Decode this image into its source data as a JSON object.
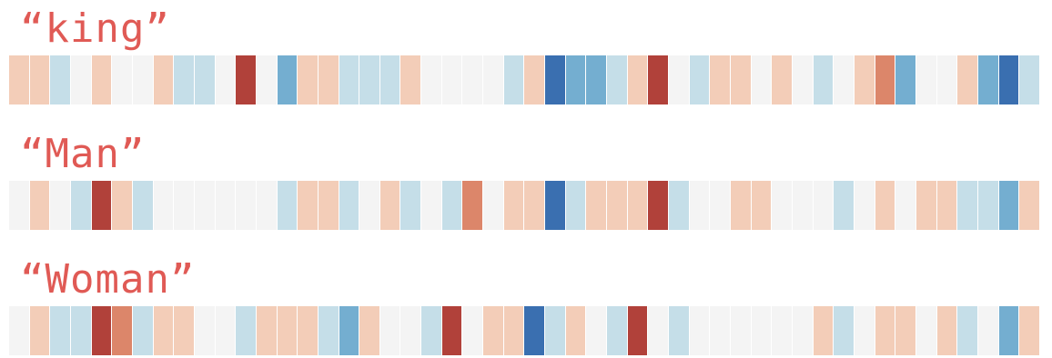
{
  "palette": {
    "-3": "#3a6fb0",
    "-2": "#74aed0",
    "-1": "#c5dee8",
    "0": "#f4f4f4",
    "1": "#f3cdb8",
    "2": "#dc866a",
    "3": "#b1413a"
  },
  "words": [
    {
      "label": "“king”",
      "values": [
        1,
        1,
        -1,
        0,
        1,
        0,
        0,
        1,
        -1,
        -1,
        0,
        3,
        0,
        -2,
        1,
        1,
        -1,
        -1,
        -1,
        1,
        0,
        0,
        0,
        0,
        -1,
        1,
        -3,
        -2,
        -2,
        -1,
        1,
        3,
        0,
        -1,
        1,
        1,
        0,
        1,
        0,
        -1,
        0,
        1,
        2,
        -2,
        0,
        0,
        1,
        -2,
        -3,
        -1
      ]
    },
    {
      "label": "“Man”",
      "values": [
        0,
        1,
        0,
        -1,
        3,
        1,
        -1,
        0,
        0,
        0,
        0,
        0,
        0,
        -1,
        1,
        1,
        -1,
        0,
        1,
        -1,
        0,
        -1,
        2,
        0,
        1,
        1,
        -3,
        -1,
        1,
        1,
        1,
        3,
        -1,
        0,
        0,
        1,
        1,
        0,
        0,
        0,
        -1,
        0,
        1,
        0,
        1,
        1,
        -1,
        -1,
        -2,
        1
      ]
    },
    {
      "label": "“Woman”",
      "values": [
        0,
        1,
        -1,
        -1,
        3,
        2,
        -1,
        1,
        1,
        0,
        0,
        -1,
        1,
        1,
        1,
        -1,
        -2,
        1,
        0,
        0,
        -1,
        3,
        0,
        1,
        1,
        -3,
        -1,
        1,
        0,
        -1,
        3,
        0,
        -1,
        0,
        0,
        0,
        0,
        0,
        0,
        1,
        -1,
        0,
        1,
        1,
        0,
        1,
        -1,
        0,
        -2,
        1
      ]
    }
  ]
}
